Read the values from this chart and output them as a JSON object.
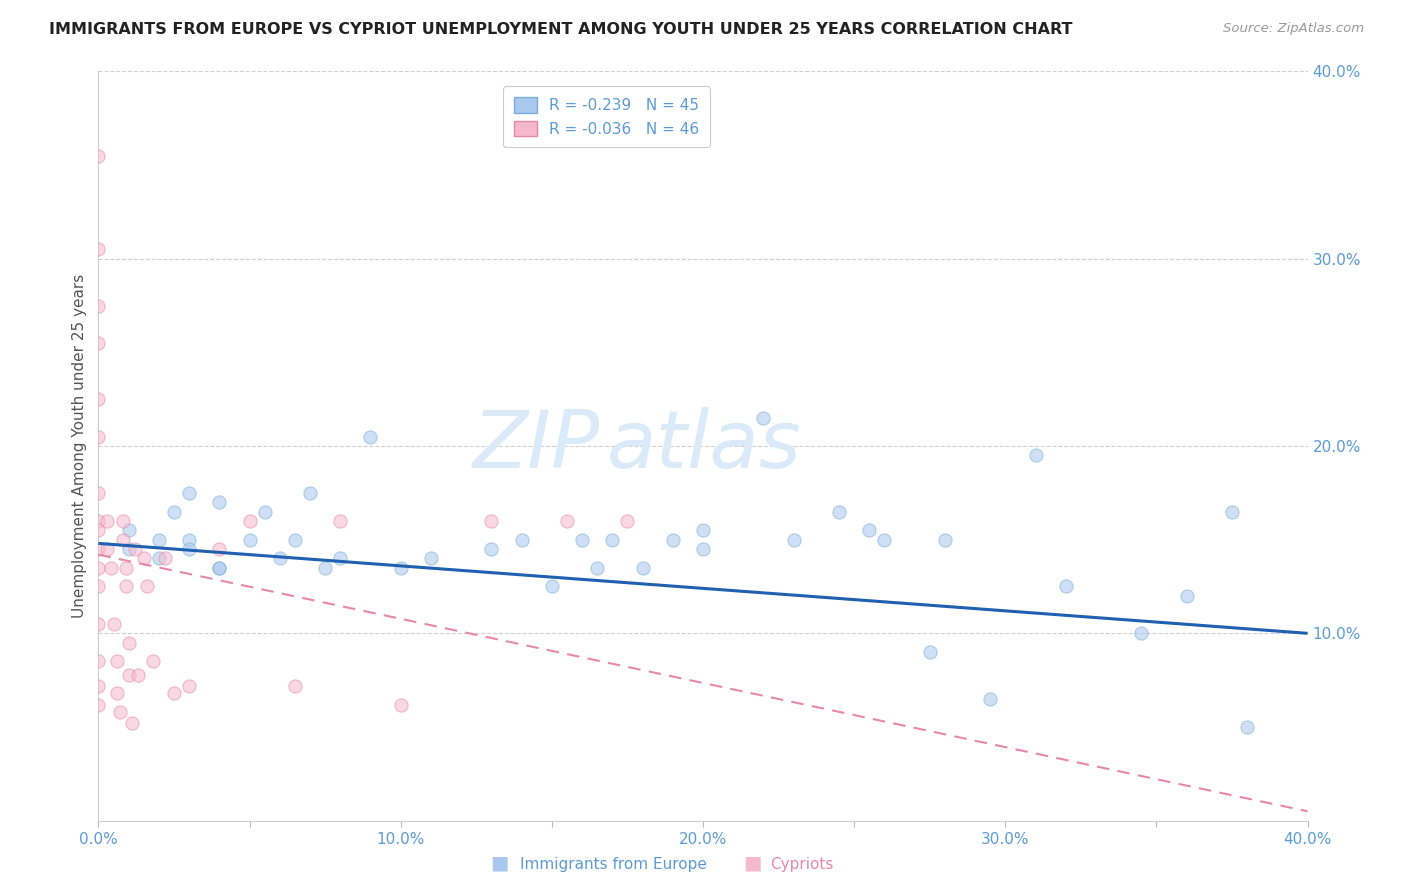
{
  "title": "IMMIGRANTS FROM EUROPE VS CYPRIOT UNEMPLOYMENT AMONG YOUTH UNDER 25 YEARS CORRELATION CHART",
  "source": "Source: ZipAtlas.com",
  "ylabel": "Unemployment Among Youth under 25 years",
  "xlim": [
    0.0,
    0.4
  ],
  "ylim": [
    0.0,
    0.4
  ],
  "xtick_vals": [
    0.0,
    0.05,
    0.1,
    0.15,
    0.2,
    0.25,
    0.3,
    0.35,
    0.4
  ],
  "xtick_labels": [
    "0.0%",
    "",
    "10.0%",
    "",
    "20.0%",
    "",
    "30.0%",
    "",
    "40.0%"
  ],
  "ytick_vals": [
    0.1,
    0.2,
    0.3,
    0.4
  ],
  "ytick_labels": [
    "10.0%",
    "20.0%",
    "30.0%",
    "40.0%"
  ],
  "blue_scatter_x": [
    0.01,
    0.01,
    0.02,
    0.02,
    0.025,
    0.03,
    0.03,
    0.03,
    0.04,
    0.04,
    0.04,
    0.05,
    0.055,
    0.06,
    0.065,
    0.07,
    0.075,
    0.08,
    0.09,
    0.1,
    0.11,
    0.13,
    0.14,
    0.15,
    0.16,
    0.165,
    0.17,
    0.18,
    0.19,
    0.2,
    0.2,
    0.22,
    0.23,
    0.245,
    0.255,
    0.26,
    0.275,
    0.28,
    0.295,
    0.31,
    0.32,
    0.345,
    0.36,
    0.375,
    0.38
  ],
  "blue_scatter_y": [
    0.145,
    0.155,
    0.14,
    0.15,
    0.165,
    0.15,
    0.145,
    0.175,
    0.135,
    0.17,
    0.135,
    0.15,
    0.165,
    0.14,
    0.15,
    0.175,
    0.135,
    0.14,
    0.205,
    0.135,
    0.14,
    0.145,
    0.15,
    0.125,
    0.15,
    0.135,
    0.15,
    0.135,
    0.15,
    0.145,
    0.155,
    0.215,
    0.15,
    0.165,
    0.155,
    0.15,
    0.09,
    0.15,
    0.065,
    0.195,
    0.125,
    0.1,
    0.12,
    0.165,
    0.05
  ],
  "pink_scatter_x": [
    0.0,
    0.0,
    0.0,
    0.0,
    0.0,
    0.0,
    0.0,
    0.0,
    0.0,
    0.0,
    0.0,
    0.0,
    0.0,
    0.0,
    0.0,
    0.0,
    0.003,
    0.003,
    0.004,
    0.005,
    0.006,
    0.006,
    0.007,
    0.008,
    0.008,
    0.009,
    0.009,
    0.01,
    0.01,
    0.011,
    0.012,
    0.013,
    0.015,
    0.016,
    0.018,
    0.022,
    0.025,
    0.03,
    0.04,
    0.05,
    0.065,
    0.08,
    0.1,
    0.13,
    0.155,
    0.175
  ],
  "pink_scatter_y": [
    0.355,
    0.305,
    0.275,
    0.255,
    0.225,
    0.205,
    0.175,
    0.16,
    0.155,
    0.145,
    0.135,
    0.125,
    0.105,
    0.085,
    0.072,
    0.062,
    0.16,
    0.145,
    0.135,
    0.105,
    0.085,
    0.068,
    0.058,
    0.16,
    0.15,
    0.135,
    0.125,
    0.095,
    0.078,
    0.052,
    0.145,
    0.078,
    0.14,
    0.125,
    0.085,
    0.14,
    0.068,
    0.072,
    0.145,
    0.16,
    0.072,
    0.16,
    0.062,
    0.16,
    0.16,
    0.16
  ],
  "blue_line_x": [
    0.0,
    0.4
  ],
  "blue_line_y": [
    0.148,
    0.1
  ],
  "pink_line_x": [
    0.0,
    0.4
  ],
  "pink_line_y": [
    0.142,
    0.005
  ],
  "background_color": "#ffffff",
  "scatter_alpha": 0.55,
  "scatter_size": 90,
  "grid_color": "#d0d0d0",
  "title_color": "#222222",
  "tick_label_color": "#5b9bd5",
  "watermark_text1": "ZIP",
  "watermark_text2": "atlas",
  "watermark_color": "#daeaf8",
  "legend_blue_label": "R = -0.239   N = 45",
  "legend_pink_label": "R = -0.036   N = 46",
  "bottom_label_blue": "Immigrants from Europe",
  "bottom_label_pink": "Cypriots"
}
